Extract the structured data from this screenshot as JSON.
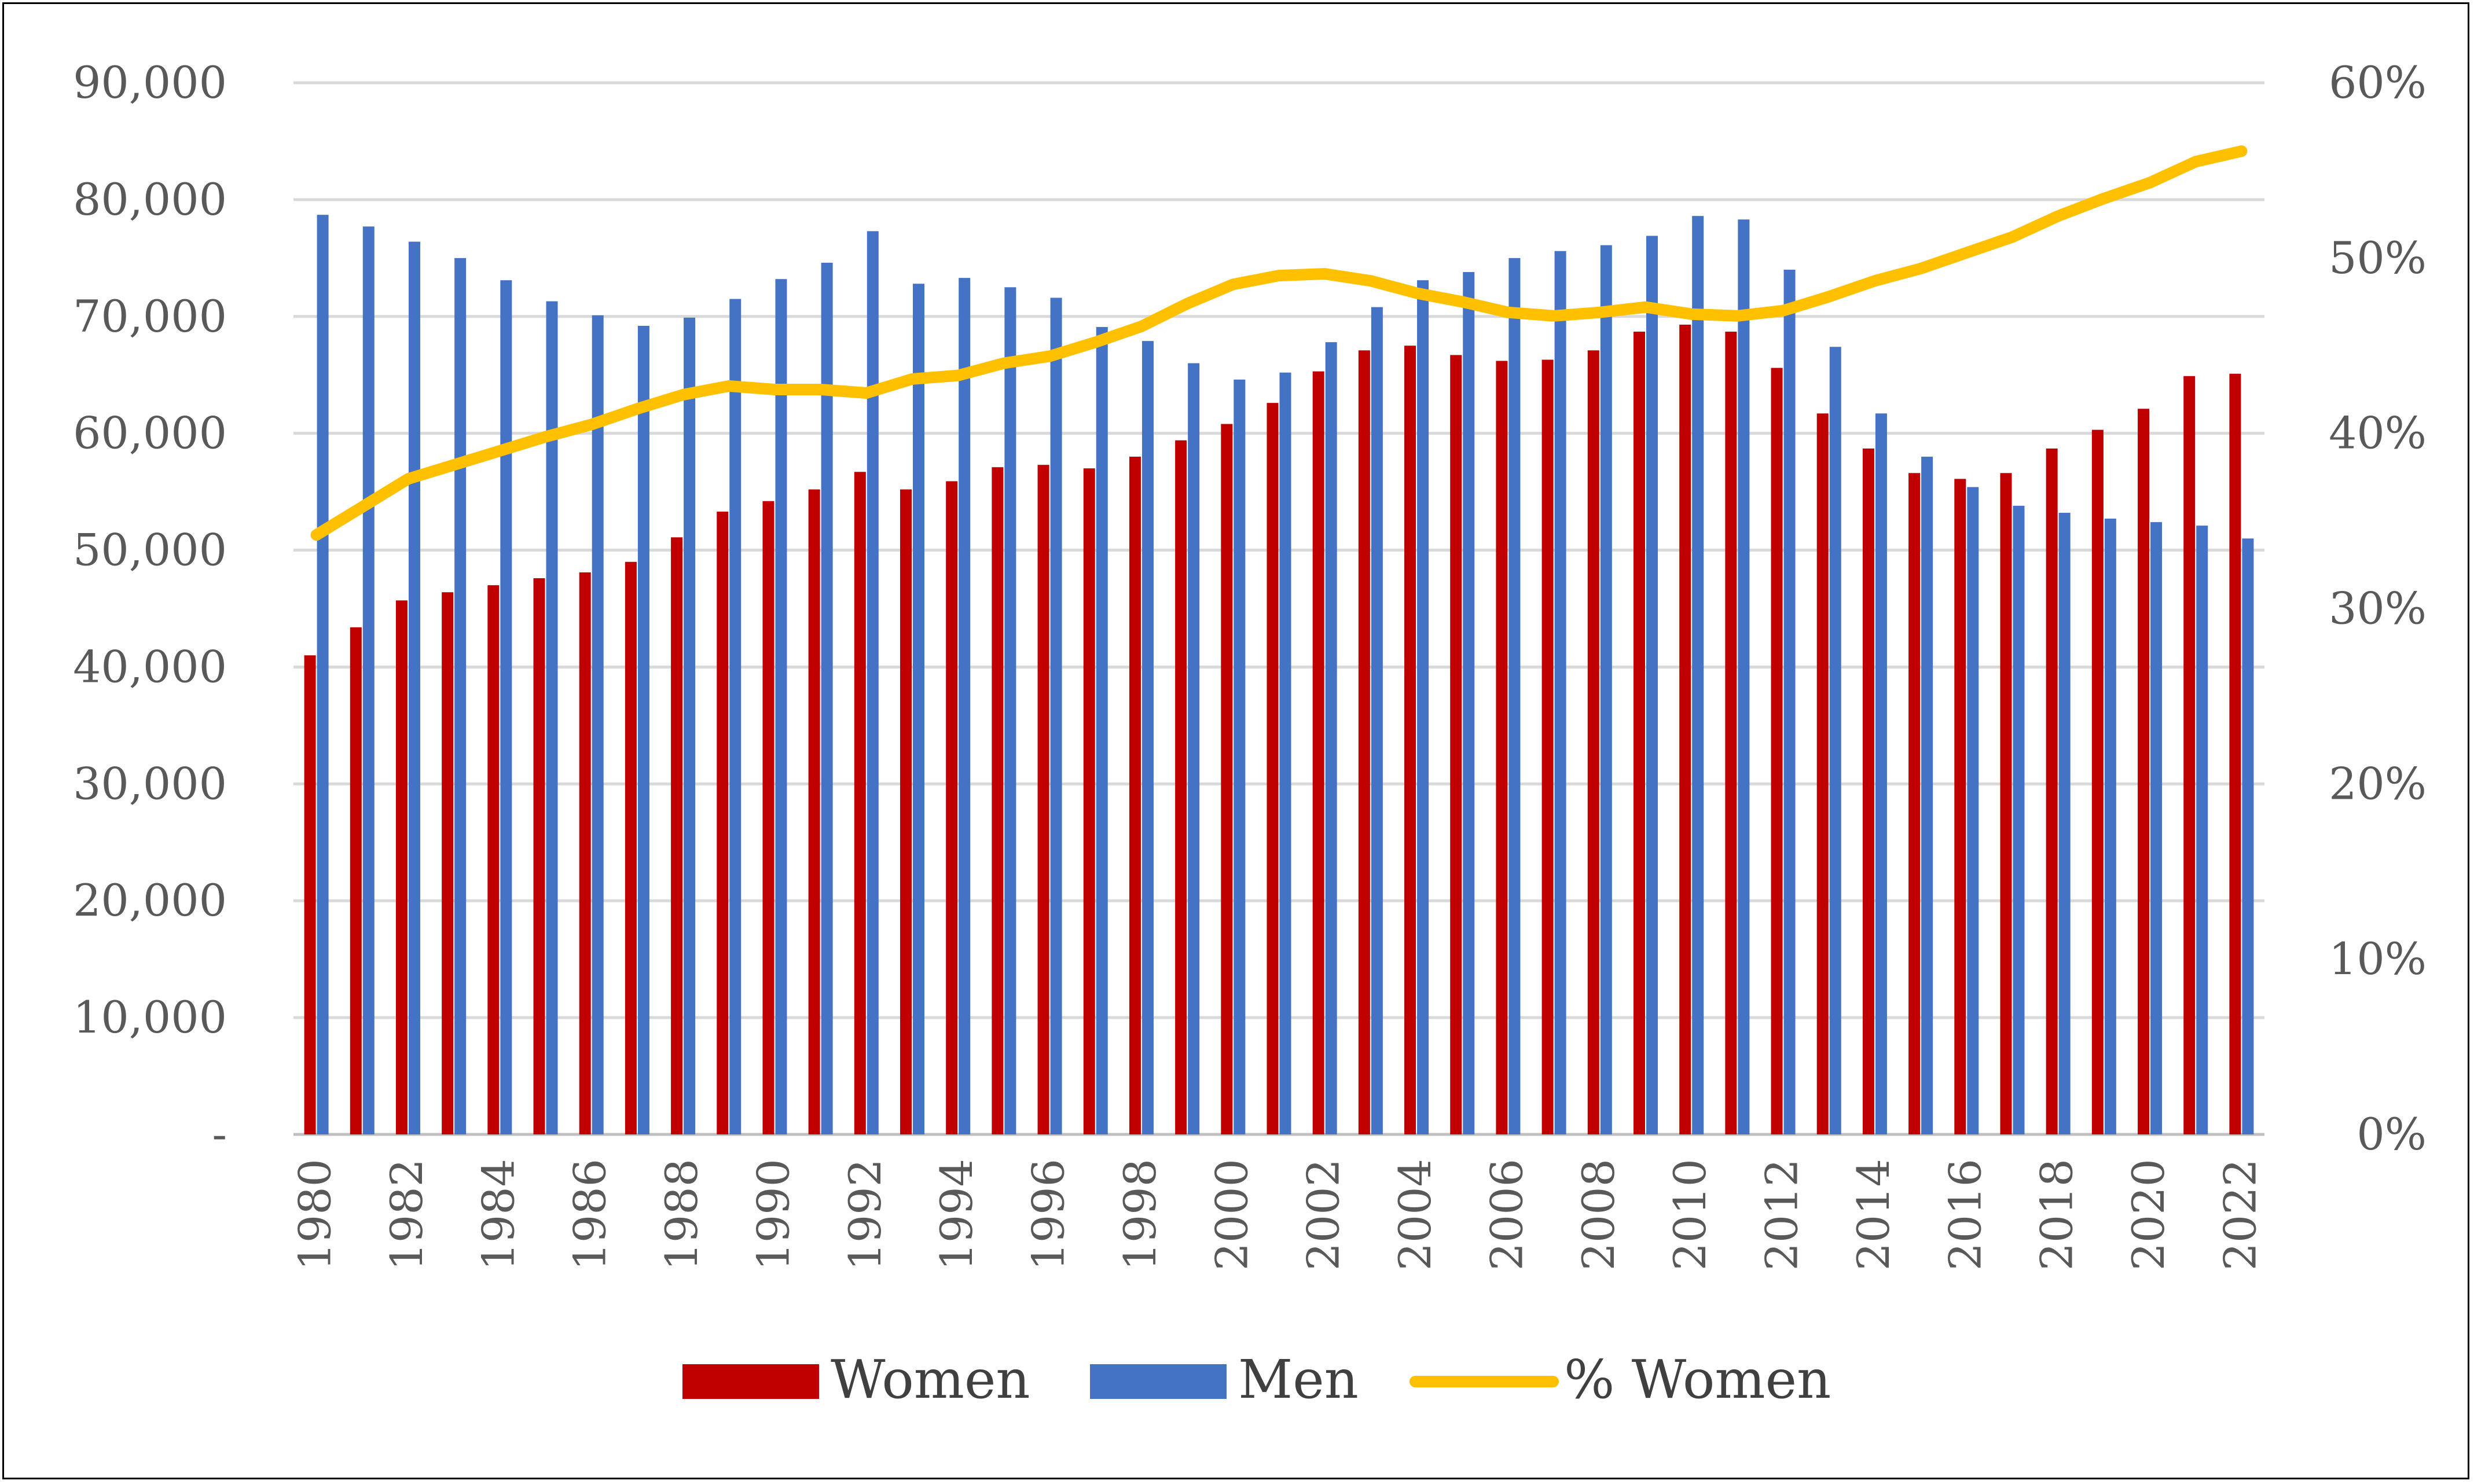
{
  "chart_data": {
    "type": "bar",
    "categories": [
      "1980",
      "1981",
      "1982",
      "1983",
      "1984",
      "1985",
      "1986",
      "1987",
      "1988",
      "1989",
      "1990",
      "1991",
      "1992",
      "1993",
      "1994",
      "1995",
      "1996",
      "1997",
      "1998",
      "1999",
      "2000",
      "2001",
      "2002",
      "2003",
      "2004",
      "2005",
      "2006",
      "2007",
      "2008",
      "2009",
      "2010",
      "2011",
      "2012",
      "2013",
      "2014",
      "2015",
      "2016",
      "2017",
      "2018",
      "2019",
      "2020",
      "2021",
      "2022"
    ],
    "x_tick_labels": [
      "1980",
      "1982",
      "1984",
      "1986",
      "1988",
      "1990",
      "1992",
      "1994",
      "1996",
      "1998",
      "2000",
      "2002",
      "2004",
      "2006",
      "2008",
      "2010",
      "2012",
      "2014",
      "2016",
      "2018",
      "2020",
      "2022"
    ],
    "series": [
      {
        "name": "Women",
        "kind": "bar",
        "axis": "left",
        "color": "#C00000",
        "values": [
          41000,
          43400,
          45700,
          46400,
          47000,
          47600,
          48100,
          49000,
          51100,
          53300,
          54200,
          55200,
          56700,
          55200,
          55900,
          57100,
          57300,
          57000,
          58000,
          59400,
          60800,
          62600,
          65300,
          67100,
          67500,
          66700,
          66200,
          66300,
          67100,
          68700,
          69300,
          68700,
          65600,
          61700,
          58700,
          56600,
          56100,
          56600,
          58700,
          60300,
          62100,
          64900,
          65100
        ]
      },
      {
        "name": "Men",
        "kind": "bar",
        "axis": "left",
        "color": "#4472C4",
        "values": [
          78700,
          77700,
          76400,
          75000,
          73100,
          71300,
          70100,
          69200,
          69900,
          71500,
          73200,
          74600,
          77300,
          72800,
          73300,
          72500,
          71600,
          69100,
          67900,
          66000,
          64600,
          65200,
          67800,
          70800,
          73100,
          73800,
          75000,
          75600,
          76100,
          76900,
          78600,
          78300,
          74000,
          67400,
          61700,
          58000,
          55400,
          53800,
          53200,
          52700,
          52400,
          52100,
          51000
        ]
      },
      {
        "name": "% Women",
        "kind": "line",
        "axis": "right",
        "color": "#FFC000",
        "values": [
          0.342,
          0.358,
          0.374,
          0.382,
          0.39,
          0.398,
          0.405,
          0.414,
          0.422,
          0.427,
          0.425,
          0.425,
          0.423,
          0.431,
          0.433,
          0.44,
          0.444,
          0.452,
          0.461,
          0.474,
          0.485,
          0.49,
          0.491,
          0.487,
          0.48,
          0.475,
          0.469,
          0.467,
          0.469,
          0.472,
          0.468,
          0.467,
          0.47,
          0.478,
          0.487,
          0.494,
          0.503,
          0.512,
          0.524,
          0.534,
          0.543,
          0.555,
          0.561
        ]
      }
    ],
    "left_axis": {
      "min": 0,
      "max": 90000,
      "ticks": [
        0,
        10000,
        20000,
        30000,
        40000,
        50000,
        60000,
        70000,
        80000,
        90000
      ],
      "tick_labels": [
        "-",
        "10,000",
        "20,000",
        "30,000",
        "40,000",
        "50,000",
        "60,000",
        "70,000",
        "80,000",
        "90,000"
      ]
    },
    "right_axis": {
      "min": 0,
      "max": 0.6,
      "tick_labels": [
        "0%",
        "10%",
        "20%",
        "30%",
        "40%",
        "50%",
        "60%"
      ]
    },
    "grid": true,
    "legend_position": "bottom"
  }
}
